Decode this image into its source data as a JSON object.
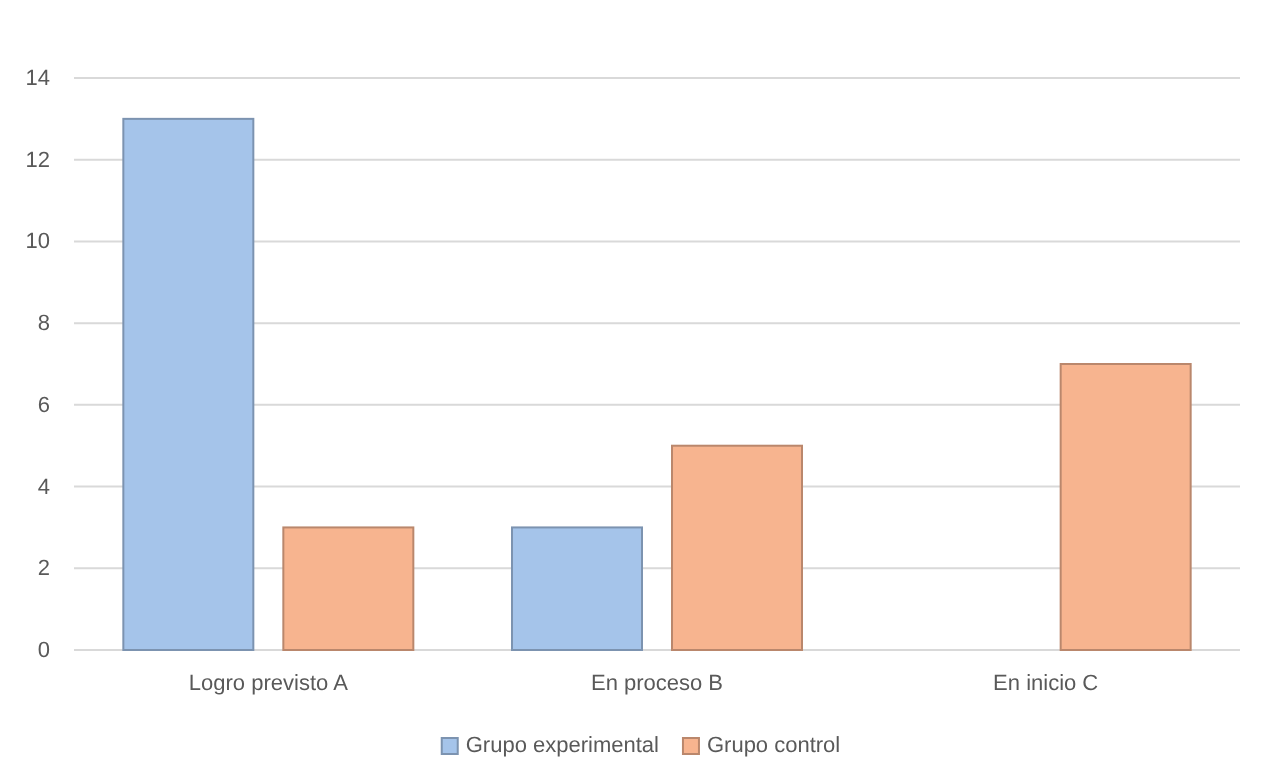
{
  "chart_data": {
    "type": "bar",
    "categories": [
      "Logro previsto A",
      "En proceso B",
      "En inicio C"
    ],
    "series": [
      {
        "name": "Grupo experimental",
        "color": "#a5c4ea",
        "values": [
          13,
          3,
          0
        ]
      },
      {
        "name": "Grupo control",
        "color": "#f7b48f",
        "values": [
          3,
          5,
          7
        ]
      }
    ],
    "ylim": [
      0,
      14
    ],
    "yticks": [
      0,
      2,
      4,
      6,
      8,
      10,
      12,
      14
    ],
    "grid": "y",
    "legend": "bottom"
  }
}
